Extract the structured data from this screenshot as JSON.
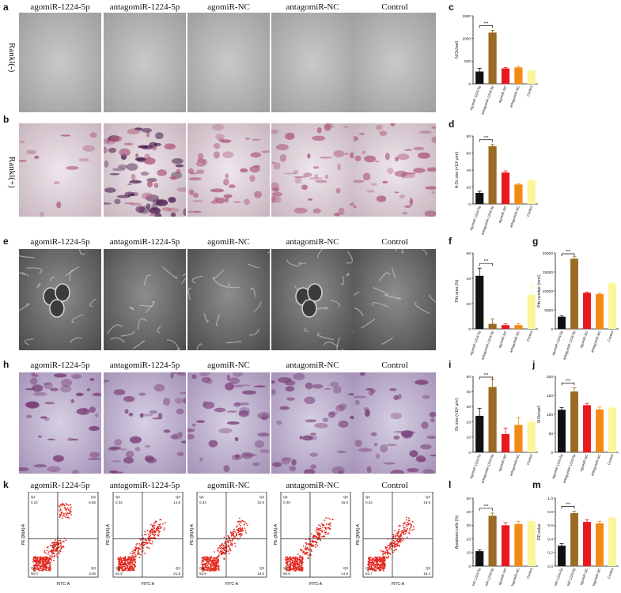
{
  "panel_letters": [
    "a",
    "b",
    "c",
    "d",
    "e",
    "f",
    "g",
    "h",
    "i",
    "j",
    "k",
    "l",
    "m"
  ],
  "groups": [
    "agomiR-1224-5p",
    "antagomiR-1224-5p",
    "agomiR-NC",
    "antagomiR-NC",
    "Control"
  ],
  "row_labels": {
    "rankl_neg": "Rankl(-)",
    "rankl_pos": "Rankl(+)"
  },
  "colors": {
    "agomiR-1224-5p": "#111111",
    "antagomiR-1224-5p": "#9b6a23",
    "agomiR-NC": "#e8191e",
    "antagomiR-NC": "#f38a16",
    "Control": "#fbf69a"
  },
  "flow": {
    "xlabel": "FITC-A",
    "ylabel": "PE [(N)A]-A",
    "quadrant_names": [
      "Q1",
      "Q2",
      "Q3",
      "Q4"
    ],
    "panels": [
      {
        "group": "agomiR-1224-5p",
        "q1": "0.24",
        "q2": "6.65",
        "q3": "3.06",
        "q4": "90.0"
      },
      {
        "group": "antagomiR-1224-5p",
        "q1": "0.32",
        "q2": "14.8",
        "q3": "21.8",
        "q4": "62.9"
      },
      {
        "group": "agomiR-NC",
        "q1": "0.34",
        "q2": "10.9",
        "q3": "18.6",
        "q4": "69.9"
      },
      {
        "group": "antagomiR-NC",
        "q1": "0.49",
        "q2": "16.0",
        "q3": "14.6",
        "q4": "68.9"
      },
      {
        "group": "Control",
        "q1": "0.34",
        "q2": "18.5",
        "q3": "18.4",
        "q4": "62.7"
      }
    ]
  },
  "chart_data": [
    {
      "panel": "c",
      "type": "bar",
      "categories": [
        "agomiR-1224-5p",
        "antagomiR-1224-5p",
        "agomiR-NC",
        "antagomiR-NC",
        "Control"
      ],
      "values": [
        270,
        1130,
        340,
        360,
        290
      ],
      "errors": [
        70,
        50,
        20,
        20,
        10
      ],
      "ylabel": "N.Oc/well",
      "yticks": [
        "0",
        "500",
        "1000",
        "1500"
      ],
      "ylim": [
        0,
        1500
      ],
      "significance": "***",
      "sig_pair": [
        0,
        1
      ]
    },
    {
      "panel": "d",
      "type": "bar",
      "categories": [
        "agomiR-1224-5p",
        "antagomiR-1224-5p",
        "agomiR-NC",
        "antagomiR-NC",
        "Control"
      ],
      "values": [
        13,
        68,
        37,
        23,
        28
      ],
      "errors": [
        2,
        2,
        2,
        1,
        1
      ],
      "ylabel": "A.Oc size (×10³ µm²)",
      "yticks": [
        "0",
        "20",
        "40",
        "60",
        "80"
      ],
      "ylim": [
        0,
        80
      ],
      "significance": "***",
      "sig_pair": [
        0,
        1
      ]
    },
    {
      "panel": "f",
      "type": "bar",
      "categories": [
        "agomiR-1224-5p",
        "antagomiR-1224-5p",
        "agomiR-NC",
        "antagomiR-NC",
        "Control"
      ],
      "values": [
        42,
        4,
        3,
        3,
        27
      ],
      "errors": [
        6,
        4,
        1,
        1,
        7
      ],
      "ylabel": "Pits area (%)",
      "yticks": [
        "0",
        "20",
        "40",
        "60"
      ],
      "ylim": [
        0,
        60
      ],
      "significance": "***",
      "sig_pair": [
        0,
        1
      ]
    },
    {
      "panel": "g",
      "type": "bar",
      "categories": [
        "agomiR-1224-5p",
        "antagomiR-1224-5p",
        "agomiR-NC",
        "antagomiR-NC",
        "Control"
      ],
      "values": [
        3200,
        18500,
        9500,
        9200,
        12000
      ],
      "errors": [
        300,
        500,
        200,
        200,
        200
      ],
      "ylabel": "Pits number (mm²)",
      "yticks": [
        "0",
        "5000",
        "10000",
        "15000",
        "20000"
      ],
      "ylim": [
        0,
        20000
      ],
      "significance": "***",
      "sig_pair": [
        0,
        1
      ]
    },
    {
      "panel": "i",
      "type": "bar",
      "categories": [
        "agomiR-1224-5p",
        "antagomiR-1224-5p",
        "agomiR-NC",
        "antagomiR-NC",
        "Control"
      ],
      "values": [
        24,
        43,
        12,
        18,
        20
      ],
      "errors": [
        5,
        5,
        4,
        5,
        2
      ],
      "ylabel": "Oc size (×10³ µm²)",
      "yticks": [
        "0",
        "10",
        "20",
        "30",
        "40",
        "50"
      ],
      "ylim": [
        0,
        50
      ],
      "significance": "***",
      "sig_pair": [
        0,
        1
      ]
    },
    {
      "panel": "j",
      "type": "bar",
      "categories": [
        "agomiR-1224-5p",
        "antagomiR-1224-5p",
        "agomiR-NC",
        "antagomiR-NC",
        "Control"
      ],
      "values": [
        112,
        160,
        124,
        113,
        118
      ],
      "errors": [
        6,
        10,
        5,
        6,
        5
      ],
      "ylabel": "N.Oc/well",
      "yticks": [
        "0",
        "50",
        "100",
        "150",
        "200"
      ],
      "ylim": [
        0,
        200
      ],
      "significance": "***",
      "sig_pair": [
        0,
        1
      ]
    },
    {
      "panel": "l",
      "type": "bar",
      "categories": [
        "agomiR-1224-5p",
        "antagomiR-1224-5p",
        "agomiR-NC",
        "antagomiR-NC",
        "Control"
      ],
      "values": [
        11,
        37,
        30,
        31,
        33
      ],
      "errors": [
        1,
        2,
        2,
        2,
        1
      ],
      "ylabel": "Apoptosis cells (%)",
      "yticks": [
        "0",
        "10",
        "20",
        "30",
        "40",
        "50"
      ],
      "ylim": [
        0,
        50
      ],
      "significance": "***",
      "sig_pair": [
        0,
        1
      ]
    },
    {
      "panel": "m",
      "type": "bar",
      "categories": [
        "agomiR-1224-5p",
        "antagomiR-1224-5p",
        "agomiR-NC",
        "antagomiR-NC",
        "Control"
      ],
      "values": [
        0.3,
        0.78,
        0.65,
        0.63,
        0.71
      ],
      "errors": [
        0.03,
        0.03,
        0.03,
        0.03,
        0.01
      ],
      "ylabel": "OD value",
      "yticks": [
        "0.0",
        "0.2",
        "0.4",
        "0.6",
        "0.8",
        "1.0"
      ],
      "ylim": [
        0,
        1.0
      ],
      "significance": "***",
      "sig_pair": [
        0,
        1
      ]
    }
  ]
}
